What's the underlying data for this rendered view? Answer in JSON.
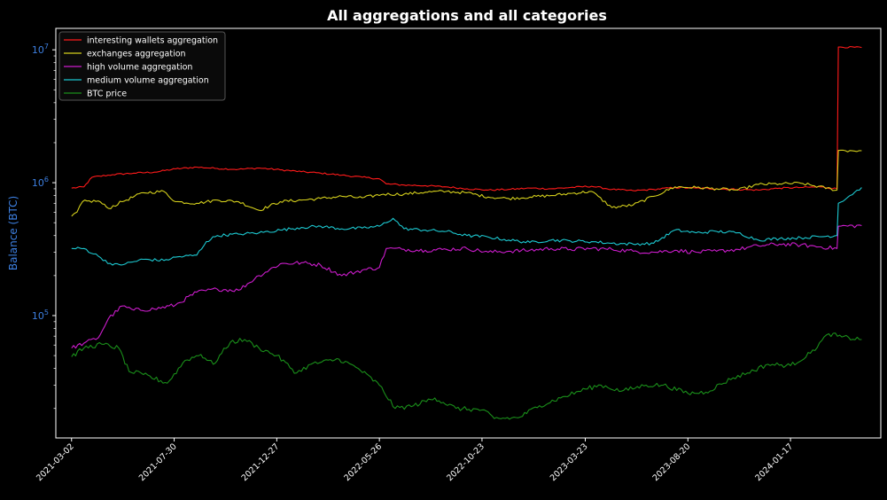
{
  "chart_data": {
    "type": "line",
    "title": "All aggregations and all categories",
    "xlabel": "",
    "ylabel": "Balance (BTC)",
    "y_scale": "log",
    "ylim": [
      12000,
      14500000
    ],
    "xlim": [
      "2021-02-07",
      "2024-05-28"
    ],
    "grid": false,
    "legend_position": "top-left",
    "colors": {
      "background": "#000000",
      "axes": "#ffffff",
      "ylabel": "#3d7fe0",
      "ytick": "#3d7fe0"
    },
    "y_ticks": [
      {
        "value": 100000,
        "base": "10",
        "exp": "5"
      },
      {
        "value": 1000000,
        "base": "10",
        "exp": "6"
      },
      {
        "value": 10000000,
        "base": "10",
        "exp": "7"
      }
    ],
    "x_ticks": [
      "2021-03-02",
      "2021-07-30",
      "2021-12-27",
      "2022-05-26",
      "2022-10-23",
      "2023-03-23",
      "2023-08-20",
      "2024-01-17"
    ],
    "series": [
      {
        "name": "interesting wallets aggregation",
        "color": "#ff1a1a",
        "points": [
          [
            "2021-03-02",
            910000
          ],
          [
            "2021-03-20",
            930000
          ],
          [
            "2021-04-01",
            1100000
          ],
          [
            "2021-05-01",
            1150000
          ],
          [
            "2021-06-01",
            1180000
          ],
          [
            "2021-07-01",
            1200000
          ],
          [
            "2021-08-01",
            1270000
          ],
          [
            "2021-09-01",
            1310000
          ],
          [
            "2021-10-01",
            1280000
          ],
          [
            "2021-11-01",
            1260000
          ],
          [
            "2021-12-01",
            1290000
          ],
          [
            "2022-01-01",
            1250000
          ],
          [
            "2022-02-01",
            1210000
          ],
          [
            "2022-03-01",
            1180000
          ],
          [
            "2022-04-01",
            1140000
          ],
          [
            "2022-05-01",
            1100000
          ],
          [
            "2022-05-26",
            1070000
          ],
          [
            "2022-06-05",
            980000
          ],
          [
            "2022-07-01",
            960000
          ],
          [
            "2022-08-01",
            950000
          ],
          [
            "2022-09-01",
            930000
          ],
          [
            "2022-10-01",
            900000
          ],
          [
            "2022-11-01",
            880000
          ],
          [
            "2022-12-01",
            890000
          ],
          [
            "2023-01-01",
            910000
          ],
          [
            "2023-02-01",
            900000
          ],
          [
            "2023-03-01",
            920000
          ],
          [
            "2023-04-01",
            940000
          ],
          [
            "2023-05-01",
            890000
          ],
          [
            "2023-06-01",
            870000
          ],
          [
            "2023-07-01",
            890000
          ],
          [
            "2023-08-01",
            920000
          ],
          [
            "2023-09-01",
            910000
          ],
          [
            "2023-10-01",
            900000
          ],
          [
            "2023-11-01",
            890000
          ],
          [
            "2023-12-01",
            880000
          ],
          [
            "2024-01-01",
            910000
          ],
          [
            "2024-02-01",
            920000
          ],
          [
            "2024-03-01",
            930000
          ],
          [
            "2024-03-25",
            900000
          ],
          [
            "2024-03-27",
            10500000
          ],
          [
            "2024-04-30",
            10400000
          ]
        ]
      },
      {
        "name": "exchanges aggregation",
        "color": "#d4cf1c",
        "points": [
          [
            "2021-03-02",
            560000
          ],
          [
            "2021-03-10",
            600000
          ],
          [
            "2021-03-18",
            720000
          ],
          [
            "2021-04-10",
            730000
          ],
          [
            "2021-04-25",
            640000
          ],
          [
            "2021-05-15",
            720000
          ],
          [
            "2021-06-15",
            840000
          ],
          [
            "2021-07-15",
            860000
          ],
          [
            "2021-08-01",
            720000
          ],
          [
            "2021-09-01",
            700000
          ],
          [
            "2021-10-01",
            740000
          ],
          [
            "2021-11-01",
            720000
          ],
          [
            "2021-12-01",
            620000
          ],
          [
            "2022-01-01",
            720000
          ],
          [
            "2022-02-01",
            740000
          ],
          [
            "2022-03-01",
            760000
          ],
          [
            "2022-04-01",
            790000
          ],
          [
            "2022-05-01",
            770000
          ],
          [
            "2022-06-01",
            820000
          ],
          [
            "2022-07-01",
            820000
          ],
          [
            "2022-08-01",
            850000
          ],
          [
            "2022-09-01",
            860000
          ],
          [
            "2022-10-01",
            840000
          ],
          [
            "2022-11-01",
            780000
          ],
          [
            "2022-12-01",
            760000
          ],
          [
            "2023-01-01",
            780000
          ],
          [
            "2023-02-01",
            800000
          ],
          [
            "2023-03-01",
            830000
          ],
          [
            "2023-04-01",
            860000
          ],
          [
            "2023-05-01",
            650000
          ],
          [
            "2023-06-01",
            680000
          ],
          [
            "2023-07-01",
            790000
          ],
          [
            "2023-08-01",
            930000
          ],
          [
            "2023-09-01",
            920000
          ],
          [
            "2023-10-01",
            900000
          ],
          [
            "2023-11-01",
            880000
          ],
          [
            "2023-12-01",
            970000
          ],
          [
            "2024-01-01",
            980000
          ],
          [
            "2024-02-01",
            990000
          ],
          [
            "2024-03-25",
            880000
          ],
          [
            "2024-03-27",
            1750000
          ],
          [
            "2024-04-30",
            1740000
          ]
        ]
      },
      {
        "name": "high volume aggregation",
        "color": "#cc1ccc",
        "points": [
          [
            "2021-03-02",
            57000
          ],
          [
            "2021-03-20",
            62000
          ],
          [
            "2021-04-10",
            68000
          ],
          [
            "2021-04-25",
            95000
          ],
          [
            "2021-05-15",
            118000
          ],
          [
            "2021-06-01",
            110000
          ],
          [
            "2021-07-01",
            112000
          ],
          [
            "2021-08-01",
            120000
          ],
          [
            "2021-09-01",
            150000
          ],
          [
            "2021-10-01",
            158000
          ],
          [
            "2021-11-01",
            155000
          ],
          [
            "2021-12-01",
            200000
          ],
          [
            "2022-01-01",
            245000
          ],
          [
            "2022-02-01",
            250000
          ],
          [
            "2022-03-01",
            240000
          ],
          [
            "2022-04-01",
            200000
          ],
          [
            "2022-05-01",
            220000
          ],
          [
            "2022-05-26",
            230000
          ],
          [
            "2022-06-05",
            320000
          ],
          [
            "2022-07-01",
            315000
          ],
          [
            "2022-08-01",
            310000
          ],
          [
            "2022-09-01",
            315000
          ],
          [
            "2022-10-01",
            320000
          ],
          [
            "2022-11-01",
            300000
          ],
          [
            "2022-12-01",
            305000
          ],
          [
            "2023-01-01",
            310000
          ],
          [
            "2023-02-01",
            320000
          ],
          [
            "2023-03-01",
            315000
          ],
          [
            "2023-04-01",
            320000
          ],
          [
            "2023-05-01",
            315000
          ],
          [
            "2023-06-01",
            305000
          ],
          [
            "2023-07-01",
            300000
          ],
          [
            "2023-08-01",
            310000
          ],
          [
            "2023-09-01",
            300000
          ],
          [
            "2023-10-01",
            305000
          ],
          [
            "2023-11-01",
            315000
          ],
          [
            "2023-12-01",
            335000
          ],
          [
            "2024-01-01",
            345000
          ],
          [
            "2024-02-01",
            340000
          ],
          [
            "2024-03-25",
            320000
          ],
          [
            "2024-03-27",
            470000
          ],
          [
            "2024-04-30",
            475000
          ]
        ]
      },
      {
        "name": "medium volume aggregation",
        "color": "#1cc8d0",
        "points": [
          [
            "2021-03-02",
            320000
          ],
          [
            "2021-03-20",
            320000
          ],
          [
            "2021-04-10",
            280000
          ],
          [
            "2021-05-01",
            240000
          ],
          [
            "2021-05-20",
            245000
          ],
          [
            "2021-06-15",
            265000
          ],
          [
            "2021-07-15",
            260000
          ],
          [
            "2021-08-01",
            275000
          ],
          [
            "2021-09-01",
            285000
          ],
          [
            "2021-09-15",
            360000
          ],
          [
            "2021-10-01",
            400000
          ],
          [
            "2021-11-01",
            410000
          ],
          [
            "2021-12-01",
            420000
          ],
          [
            "2022-01-01",
            440000
          ],
          [
            "2022-02-01",
            460000
          ],
          [
            "2022-03-01",
            470000
          ],
          [
            "2022-04-01",
            450000
          ],
          [
            "2022-05-01",
            455000
          ],
          [
            "2022-05-26",
            470000
          ],
          [
            "2022-06-15",
            540000
          ],
          [
            "2022-07-01",
            450000
          ],
          [
            "2022-08-01",
            440000
          ],
          [
            "2022-09-01",
            430000
          ],
          [
            "2022-10-01",
            400000
          ],
          [
            "2022-11-01",
            390000
          ],
          [
            "2022-12-01",
            370000
          ],
          [
            "2023-01-01",
            355000
          ],
          [
            "2023-02-01",
            370000
          ],
          [
            "2023-03-01",
            365000
          ],
          [
            "2023-04-01",
            360000
          ],
          [
            "2023-05-01",
            350000
          ],
          [
            "2023-06-01",
            345000
          ],
          [
            "2023-07-01",
            350000
          ],
          [
            "2023-08-01",
            440000
          ],
          [
            "2023-09-01",
            420000
          ],
          [
            "2023-10-01",
            430000
          ],
          [
            "2023-11-01",
            420000
          ],
          [
            "2023-12-01",
            370000
          ],
          [
            "2024-01-01",
            380000
          ],
          [
            "2024-02-01",
            385000
          ],
          [
            "2024-03-25",
            400000
          ],
          [
            "2024-03-27",
            700000
          ],
          [
            "2024-04-30",
            920000
          ]
        ]
      },
      {
        "name": "BTC price",
        "color": "#1a8f1a",
        "points": [
          [
            "2021-03-02",
            49000
          ],
          [
            "2021-03-20",
            57000
          ],
          [
            "2021-04-15",
            61000
          ],
          [
            "2021-05-10",
            57000
          ],
          [
            "2021-05-25",
            38000
          ],
          [
            "2021-06-15",
            36000
          ],
          [
            "2021-07-20",
            31000
          ],
          [
            "2021-08-15",
            46000
          ],
          [
            "2021-09-07",
            51000
          ],
          [
            "2021-09-25",
            43000
          ],
          [
            "2021-10-20",
            63000
          ],
          [
            "2021-11-10",
            66000
          ],
          [
            "2021-12-01",
            57000
          ],
          [
            "2021-12-27",
            50000
          ],
          [
            "2022-01-25",
            37000
          ],
          [
            "2022-02-15",
            43000
          ],
          [
            "2022-03-28",
            47000
          ],
          [
            "2022-04-25",
            40000
          ],
          [
            "2022-05-26",
            30000
          ],
          [
            "2022-06-18",
            20000
          ],
          [
            "2022-07-15",
            21000
          ],
          [
            "2022-08-15",
            24000
          ],
          [
            "2022-09-15",
            20000
          ],
          [
            "2022-10-23",
            19500
          ],
          [
            "2022-11-10",
            16800
          ],
          [
            "2022-12-15",
            17000
          ],
          [
            "2023-01-15",
            21000
          ],
          [
            "2023-02-15",
            24000
          ],
          [
            "2023-03-23",
            28000
          ],
          [
            "2023-04-15",
            30000
          ],
          [
            "2023-05-15",
            27000
          ],
          [
            "2023-06-20",
            30000
          ],
          [
            "2023-07-15",
            30000
          ],
          [
            "2023-08-20",
            26000
          ],
          [
            "2023-09-15",
            26500
          ],
          [
            "2023-10-25",
            34000
          ],
          [
            "2023-11-15",
            37000
          ],
          [
            "2023-12-15",
            43000
          ],
          [
            "2024-01-17",
            42000
          ],
          [
            "2024-02-15",
            52000
          ],
          [
            "2024-03-13",
            73000
          ],
          [
            "2024-04-01",
            69000
          ],
          [
            "2024-04-30",
            66000
          ]
        ]
      }
    ]
  }
}
